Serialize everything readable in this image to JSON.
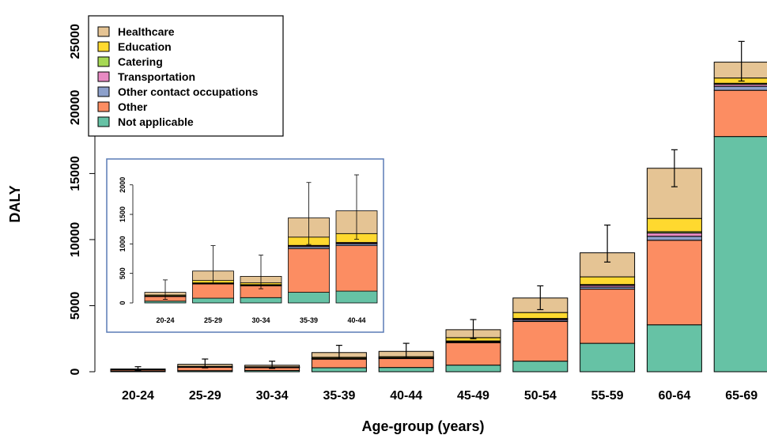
{
  "chart_data": [
    {
      "type": "bar",
      "stacked": true,
      "xlabel": "Age-group (years)",
      "ylabel": "DALY",
      "ylim": [
        0,
        25500
      ],
      "yticks": [
        0,
        5000,
        10000,
        15000,
        20000,
        25000
      ],
      "categories": [
        "20-24",
        "25-29",
        "30-34",
        "35-39",
        "40-44",
        "45-49",
        "50-54",
        "55-59",
        "60-64",
        "65-69"
      ],
      "legend_position": "top-left",
      "series": [
        {
          "name": "Not applicable",
          "color": "#66c2a5",
          "values": [
            30,
            80,
            90,
            300,
            320,
            500,
            800,
            2150,
            3550,
            17800
          ]
        },
        {
          "name": "Other",
          "color": "#fc8d62",
          "values": [
            120,
            280,
            240,
            650,
            680,
            1700,
            3000,
            4100,
            6400,
            3500
          ]
        },
        {
          "name": "Other contact occupations",
          "color": "#8da0cb",
          "values": [
            5,
            10,
            10,
            40,
            40,
            60,
            100,
            150,
            300,
            300
          ]
        },
        {
          "name": "Transportation",
          "color": "#e78ac3",
          "values": [
            2,
            5,
            5,
            15,
            15,
            40,
            80,
            130,
            250,
            150
          ]
        },
        {
          "name": "Catering",
          "color": "#a6d854",
          "values": [
            2,
            5,
            5,
            10,
            10,
            30,
            50,
            70,
            100,
            80
          ]
        },
        {
          "name": "Education",
          "color": "#ffd92f",
          "values": [
            5,
            25,
            20,
            80,
            75,
            250,
            450,
            580,
            1000,
            400
          ]
        },
        {
          "name": "Healthcare",
          "color": "#e5c494",
          "values": [
            46,
            155,
            120,
            355,
            400,
            600,
            1100,
            1820,
            3800,
            1200
          ]
        }
      ],
      "error_bars": {
        "center": [
          210,
          560,
          490,
          1450,
          1540,
          3180,
          5580,
          9800,
          15400,
          23500
        ],
        "low": [
          60,
          300,
          250,
          1000,
          1050,
          2500,
          4700,
          8300,
          14000,
          22000
        ],
        "high": [
          380,
          960,
          800,
          2000,
          2150,
          3950,
          6500,
          11100,
          16800,
          25000
        ]
      }
    },
    {
      "type": "bar",
      "stacked": true,
      "inset": true,
      "ylim": [
        0,
        2050
      ],
      "yticks": [
        0,
        500,
        1000,
        1500,
        2000
      ],
      "categories": [
        "20-24",
        "25-29",
        "30-34",
        "35-39",
        "40-44"
      ],
      "series": [
        {
          "name": "Not applicable",
          "color": "#66c2a5",
          "values": [
            30,
            80,
            90,
            180,
            200
          ]
        },
        {
          "name": "Other",
          "color": "#fc8d62",
          "values": [
            80,
            240,
            200,
            740,
            770
          ]
        },
        {
          "name": "Other contact occupations",
          "color": "#8da0cb",
          "values": [
            5,
            10,
            10,
            30,
            30
          ]
        },
        {
          "name": "Transportation",
          "color": "#e78ac3",
          "values": [
            2,
            5,
            5,
            15,
            15
          ]
        },
        {
          "name": "Catering",
          "color": "#a6d854",
          "values": [
            2,
            5,
            5,
            10,
            10
          ]
        },
        {
          "name": "Education",
          "color": "#ffd92f",
          "values": [
            15,
            40,
            30,
            140,
            150
          ]
        },
        {
          "name": "Healthcare",
          "color": "#e5c494",
          "values": [
            46,
            160,
            110,
            325,
            385
          ]
        }
      ],
      "error_bars": {
        "center": [
          180,
          540,
          450,
          1440,
          1560
        ],
        "low": [
          60,
          330,
          240,
          990,
          1080
        ],
        "high": [
          390,
          970,
          810,
          2040,
          2170
        ]
      }
    }
  ]
}
